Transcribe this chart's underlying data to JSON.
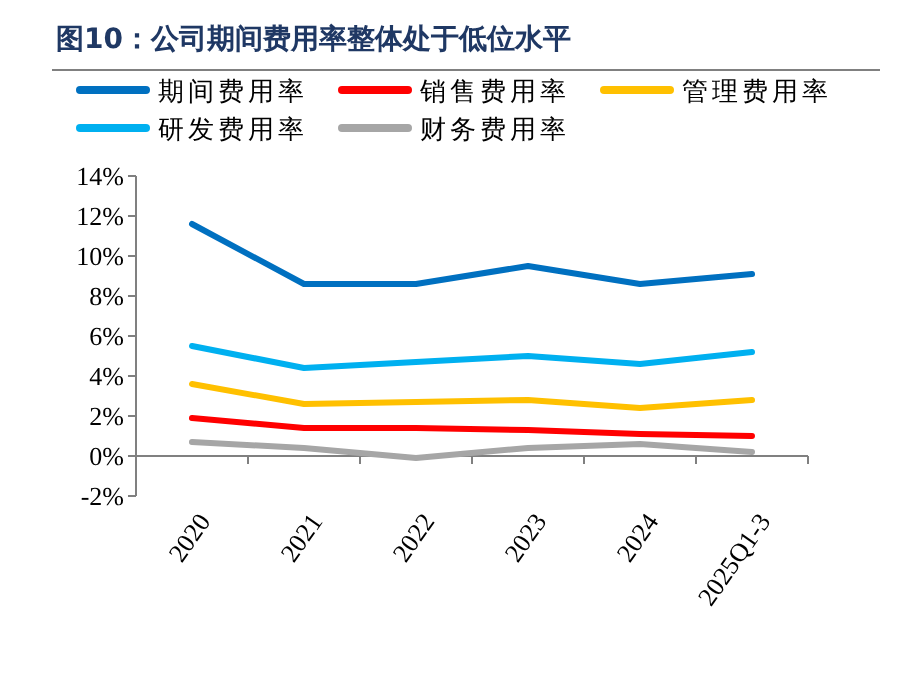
{
  "chart_data": {
    "type": "line",
    "title": "图10：公司期间费用率整体处于低位水平",
    "categories": [
      "2020",
      "2021",
      "2022",
      "2023",
      "2024",
      "2025Q1-3"
    ],
    "series": [
      {
        "name": "期间费用率",
        "color": "#0070c0",
        "values": [
          11.6,
          8.6,
          8.6,
          9.5,
          8.6,
          9.1
        ]
      },
      {
        "name": "销售费用率",
        "color": "#ff0000",
        "values": [
          1.9,
          1.4,
          1.4,
          1.3,
          1.1,
          1.0
        ]
      },
      {
        "name": "管理费用率",
        "color": "#ffc000",
        "values": [
          3.6,
          2.6,
          2.7,
          2.8,
          2.4,
          2.8
        ]
      },
      {
        "name": "研发费用率",
        "color": "#00b0f0",
        "values": [
          5.5,
          4.4,
          4.7,
          5.0,
          4.6,
          5.2
        ]
      },
      {
        "name": "财务费用率",
        "color": "#a6a6a6",
        "values": [
          0.7,
          0.4,
          -0.1,
          0.4,
          0.6,
          0.2
        ]
      }
    ],
    "ylim": [
      -2,
      14
    ],
    "yticks": [
      {
        "value": -2,
        "label": "-2%"
      },
      {
        "value": 0,
        "label": "0%"
      },
      {
        "value": 2,
        "label": "2%"
      },
      {
        "value": 4,
        "label": "4%"
      },
      {
        "value": 6,
        "label": "6%"
      },
      {
        "value": 8,
        "label": "8%"
      },
      {
        "value": 10,
        "label": "10%"
      },
      {
        "value": 12,
        "label": "12%"
      },
      {
        "value": 14,
        "label": "14%"
      }
    ],
    "legend": "top",
    "grid": false,
    "marker": "none",
    "line_style": "solid"
  }
}
